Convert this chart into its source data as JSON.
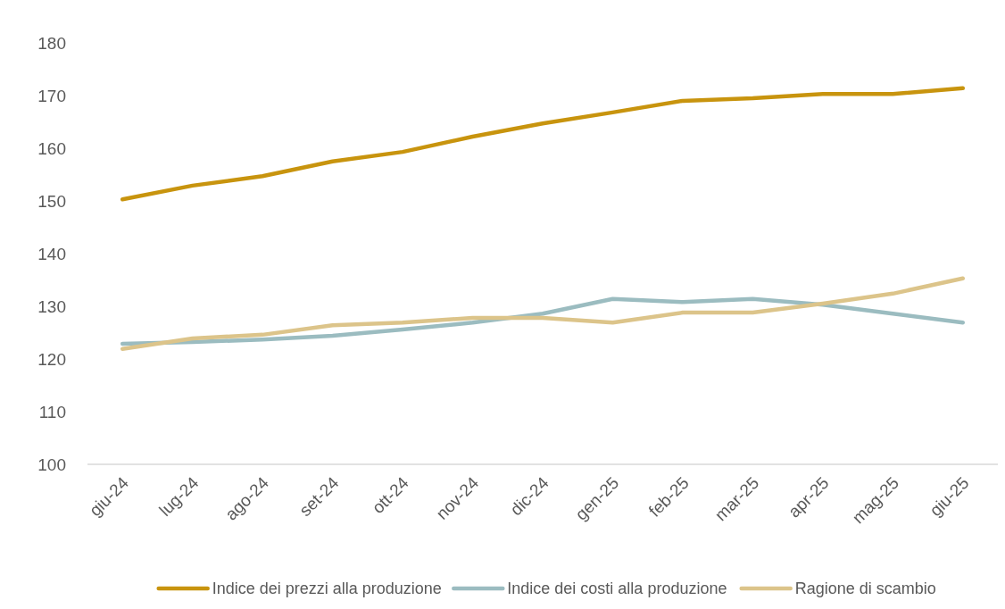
{
  "chart_data": {
    "type": "line",
    "categories": [
      "giu-24",
      "lug-24",
      "ago-24",
      "set-24",
      "ott-24",
      "nov-24",
      "dic-24",
      "gen-25",
      "feb-25",
      "mar-25",
      "apr-25",
      "mag-25",
      "giu-25"
    ],
    "series": [
      {
        "name": "Indice dei prezzi alla produzione",
        "color": "#c8940e",
        "values": [
          150.3,
          152.9,
          154.7,
          157.5,
          159.3,
          162.2,
          164.7,
          166.8,
          169.0,
          169.5,
          170.3,
          170.3,
          171.4
        ]
      },
      {
        "name": "Indice dei costi alla produzione",
        "color": "#9bbcc0",
        "values": [
          122.9,
          123.2,
          123.7,
          124.4,
          125.6,
          126.9,
          128.6,
          131.4,
          130.8,
          131.4,
          130.3,
          128.6,
          126.9
        ]
      },
      {
        "name": "Ragione di scambio",
        "color": "#dcc48a",
        "values": [
          121.9,
          123.9,
          124.6,
          126.4,
          126.9,
          127.8,
          127.8,
          126.9,
          128.8,
          128.8,
          130.5,
          132.4,
          135.3
        ]
      }
    ],
    "ylim": [
      100,
      180
    ],
    "yticks": [
      100,
      110,
      120,
      130,
      140,
      150,
      160,
      170,
      180
    ],
    "grid": false,
    "legend": "bottom",
    "marker": "none",
    "line_style": "solid"
  }
}
